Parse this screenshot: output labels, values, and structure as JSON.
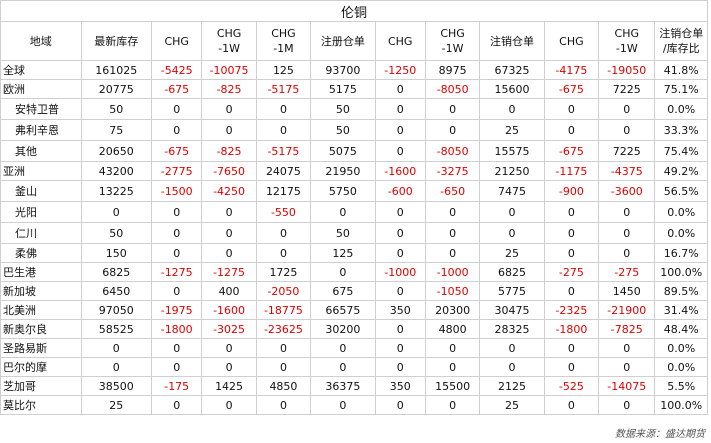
{
  "title": "伦铜",
  "headers": [
    [
      "地域"
    ],
    [
      "最新库存"
    ],
    [
      "CHG"
    ],
    [
      "CHG",
      "-1W"
    ],
    [
      "CHG",
      "-1M"
    ],
    [
      "注册仓单"
    ],
    [
      "CHG"
    ],
    [
      "CHG",
      "-1W"
    ],
    [
      "注销仓单"
    ],
    [
      "CHG"
    ],
    [
      "CHG",
      "-1W"
    ],
    [
      "注销仓单",
      "/库存比"
    ]
  ],
  "rows": [
    [
      "全球",
      "161025",
      "-5425",
      "-10075",
      "125",
      "93700",
      "-1250",
      "8975",
      "67325",
      "-4175",
      "-19050",
      "41.8%"
    ],
    [
      "欧洲",
      "20775",
      "-675",
      "-825",
      "-5175",
      "5175",
      "0",
      "-8050",
      "15600",
      "-675",
      "7225",
      "75.1%"
    ],
    [
      "安特卫普",
      "50",
      "0",
      "0",
      "0",
      "50",
      "0",
      "0",
      "0",
      "0",
      "0",
      "0.0%"
    ],
    [
      "弗利辛恩",
      "75",
      "0",
      "0",
      "0",
      "50",
      "0",
      "0",
      "25",
      "0",
      "0",
      "33.3%"
    ],
    [
      "其他",
      "20650",
      "-675",
      "-825",
      "-5175",
      "5075",
      "0",
      "-8050",
      "15575",
      "-675",
      "7225",
      "75.4%"
    ],
    [
      "亚洲",
      "43200",
      "-2775",
      "-7650",
      "24075",
      "21950",
      "-1600",
      "-3275",
      "21250",
      "-1175",
      "-4375",
      "49.2%"
    ],
    [
      "釜山",
      "13225",
      "-1500",
      "-4250",
      "12175",
      "5750",
      "-600",
      "-650",
      "7475",
      "-900",
      "-3600",
      "56.5%"
    ],
    [
      "光阳",
      "0",
      "0",
      "0",
      "-550",
      "0",
      "0",
      "0",
      "0",
      "0",
      "0",
      "0.0%"
    ],
    [
      "仁川",
      "50",
      "0",
      "0",
      "0",
      "50",
      "0",
      "0",
      "0",
      "0",
      "0",
      "0.0%"
    ],
    [
      "柔佛",
      "150",
      "0",
      "0",
      "0",
      "125",
      "0",
      "0",
      "25",
      "0",
      "0",
      "16.7%"
    ],
    [
      "巴生港",
      "6825",
      "-1275",
      "-1275",
      "1725",
      "0",
      "-1000",
      "-1000",
      "6825",
      "-275",
      "-275",
      "100.0%"
    ],
    [
      "新加坡",
      "6450",
      "0",
      "400",
      "-2050",
      "675",
      "0",
      "-1050",
      "5775",
      "0",
      "1450",
      "89.5%"
    ],
    [
      "北美洲",
      "97050",
      "-1975",
      "-1600",
      "-18775",
      "66575",
      "350",
      "20300",
      "30475",
      "-2325",
      "-21900",
      "31.4%"
    ],
    [
      "新奥尔良",
      "58525",
      "-1800",
      "-3025",
      "-23625",
      "30200",
      "0",
      "4800",
      "28325",
      "-1800",
      "-7825",
      "48.4%"
    ],
    [
      "圣路易斯",
      "0",
      "0",
      "0",
      "0",
      "0",
      "0",
      "0",
      "0",
      "0",
      "0",
      "0.0%"
    ],
    [
      "巴尔的摩",
      "0",
      "0",
      "0",
      "0",
      "0",
      "0",
      "0",
      "0",
      "0",
      "0",
      "0.0%"
    ],
    [
      "芝加哥",
      "38500",
      "-175",
      "1425",
      "4850",
      "36375",
      "350",
      "15500",
      "2125",
      "-525",
      "-14075",
      "5.5%"
    ],
    [
      "莫比尔",
      "25",
      "0",
      "0",
      "0",
      "0",
      "0",
      "0",
      "25",
      "0",
      "0",
      "100.0%"
    ]
  ],
  "row_styles": {
    "indented": [
      2,
      3,
      4,
      6,
      7,
      8,
      9
    ],
    "section_starts": [
      5,
      12
    ],
    "tall": [
      2,
      3,
      4,
      6,
      7,
      8
    ]
  },
  "negative_color": "#e00000",
  "source": "数据来源：盛达期货"
}
